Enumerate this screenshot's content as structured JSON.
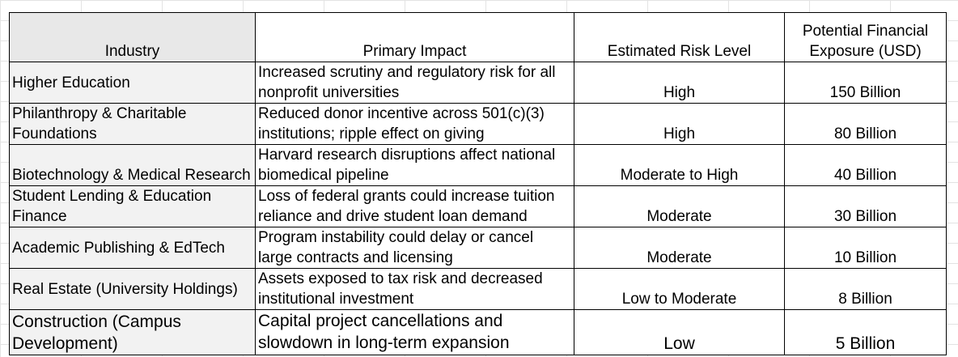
{
  "table": {
    "headers": [
      "Industry",
      "Primary Impact",
      "Estimated Risk Level",
      "Potential Financial Exposure (USD)"
    ],
    "rows": [
      {
        "industry": "Higher Education",
        "impact": "Increased scrutiny and regulatory risk for all nonprofit universities",
        "risk": "High",
        "exposure": "150 Billion"
      },
      {
        "industry": "Philanthropy & Charitable Foundations",
        "impact": "Reduced donor incentive across 501(c)(3) institutions; ripple effect on giving",
        "risk": "High",
        "exposure": "80 Billion"
      },
      {
        "industry": "Biotechnology & Medical Research",
        "impact": "Harvard research disruptions affect national biomedical pipeline",
        "risk": "Moderate to High",
        "exposure": "40 Billion"
      },
      {
        "industry": "Student Lending & Education Finance",
        "impact": "Loss of federal grants could increase tuition reliance and drive student loan demand",
        "risk": "Moderate",
        "exposure": "30 Billion"
      },
      {
        "industry": "Academic Publishing & EdTech",
        "impact": "Program instability could delay or cancel large contracts and licensing",
        "risk": "Moderate",
        "exposure": "10 Billion"
      },
      {
        "industry": "Real Estate (University Holdings)",
        "impact": "Assets exposed to tax risk and decreased institutional investment",
        "risk": "Low to Moderate",
        "exposure": "8 Billion"
      },
      {
        "industry": "Construction (Campus Development)",
        "impact": "Capital project cancellations and slowdown in long-term expansion",
        "risk": "Low",
        "exposure": "5 Billion"
      }
    ]
  }
}
